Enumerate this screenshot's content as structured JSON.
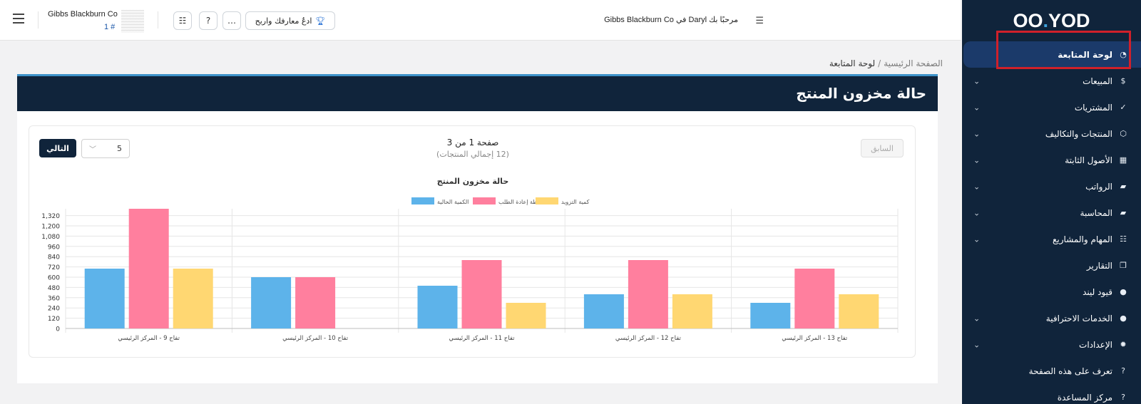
{
  "sidebar": {
    "logo": {
      "part1": "O",
      "part2": "O",
      "part3": ".",
      "part4": "YOD"
    },
    "items": [
      {
        "label": "لوحة المتابعة",
        "icon": "gauge-icon",
        "chevron": false,
        "active": true
      },
      {
        "label": "المبيعات",
        "icon": "dollar-circle-icon",
        "chevron": true
      },
      {
        "label": "المشتريات",
        "icon": "clipboard-icon",
        "chevron": true
      },
      {
        "label": "المنتجات والتكاليف",
        "icon": "box-icon",
        "chevron": true
      },
      {
        "label": "الأصول الثابتة",
        "icon": "grid-icon",
        "chevron": true
      },
      {
        "label": "الرواتب",
        "icon": "folder-icon",
        "chevron": true
      },
      {
        "label": "المحاسبة",
        "icon": "folder-icon",
        "chevron": true
      },
      {
        "label": "المهام والمشاريع",
        "icon": "list-icon",
        "chevron": true
      },
      {
        "label": "التقارير",
        "icon": "copy-icon",
        "chevron": false
      },
      {
        "label": "قيود ليند",
        "icon": "search-icon",
        "chevron": false
      },
      {
        "label": "الخدمات الاحترافية",
        "icon": "search-icon",
        "chevron": true
      },
      {
        "label": "الإعدادات",
        "icon": "gear-icon",
        "chevron": true
      },
      {
        "label": "تعرف على هذه الصفحة",
        "icon": "help-icon",
        "chevron": false
      },
      {
        "label": "مركز المساعدة",
        "icon": "help-icon",
        "chevron": false
      }
    ]
  },
  "topbar": {
    "company": "Gibbs Blackburn Co",
    "company_num": "1 #",
    "welcome": "مرحبًا بك Daryl في Gibbs Blackburn Co",
    "learn_button": "ادعُ معارفك واربح"
  },
  "breadcrumb": {
    "home": "الصفحة الرئيسية",
    "sep": "/",
    "current": "لوحة المتابعة"
  },
  "card": {
    "title": "حالة مخزون المنتج",
    "next_label": "التالي",
    "prev_label": "السابق",
    "per_page": "5",
    "page_info": "صفحة 1 من 3",
    "total_info": "(12 إجمالي المنتجات)"
  },
  "colors": {
    "current": "#5db3ea",
    "reorder": "#ff7f9e",
    "supply": "#ffd772",
    "navy": "#10243b"
  },
  "chart_data": {
    "type": "bar",
    "title": "حالة مخزون المنتج",
    "categories": [
      "تفاح 9 - المركز الرئيسي",
      "تفاح 10 - المركز الرئيسي",
      "تفاح 11 - المركز الرئيسي",
      "تفاح 12 - المركز الرئيسي",
      "تفاح 13 - المركز الرئيسي"
    ],
    "series": [
      {
        "name": "الكمية الحالية",
        "values": [
          700,
          600,
          500,
          400,
          300
        ]
      },
      {
        "name": "نقطة إعادة الطلب",
        "values": [
          1400,
          600,
          800,
          800,
          700
        ]
      },
      {
        "name": "كمية التزويد",
        "values": [
          700,
          0,
          300,
          400,
          400
        ]
      }
    ],
    "yticks": [
      0,
      120,
      240,
      360,
      480,
      600,
      720,
      840,
      960,
      1080,
      1200,
      1320
    ],
    "ytick_labels": [
      "0",
      "120",
      "240",
      "360",
      "480",
      "600",
      "720",
      "840",
      "960",
      "1,080",
      "1,200",
      "1,320"
    ],
    "ylim": [
      0,
      1400
    ],
    "legend": "top-center",
    "grid": true
  }
}
